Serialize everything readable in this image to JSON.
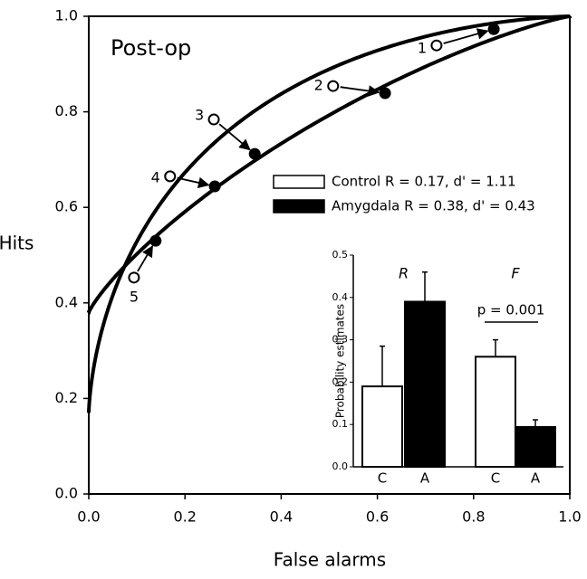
{
  "chart_data": [
    {
      "type": "roc",
      "annotation": "Post-op",
      "xlabel": "False alarms",
      "ylabel": "Hits",
      "xlim": [
        0,
        1
      ],
      "ylim": [
        0,
        1
      ],
      "xticks": [
        {
          "value": 0,
          "label": "0.0"
        },
        0.2,
        0.4,
        0.6,
        0.8,
        {
          "value": 1,
          "label": "1.0"
        }
      ],
      "yticks": [
        {
          "value": 0,
          "label": "0.0"
        },
        0.2,
        0.4,
        0.6,
        0.8,
        {
          "value": 1,
          "label": "1.0"
        }
      ],
      "point_labels": [
        "1",
        "2",
        "3",
        "4",
        "5"
      ],
      "series": [
        {
          "name": "Control R = 0.17, d' = 1.11",
          "color": "#ffffff",
          "R": 0.17,
          "d_prime": 1.11,
          "x": [
            0.723,
            0.508,
            0.26,
            0.169,
            0.094
          ],
          "values": [
            0.939,
            0.854,
            0.784,
            0.665,
            0.453
          ]
        },
        {
          "name": "Amygdala R = 0.38, d' = 0.43",
          "color": "#000000",
          "R": 0.38,
          "d_prime": 0.43,
          "x": [
            0.842,
            0.616,
            0.345,
            0.262,
            0.139
          ],
          "values": [
            0.973,
            0.839,
            0.712,
            0.644,
            0.53
          ]
        }
      ]
    },
    {
      "type": "bar",
      "ylabel": "Probability estimates",
      "ylim": [
        0,
        0.5
      ],
      "yticks": [
        {
          "value": 0,
          "label": "0.0"
        },
        0.1,
        0.2,
        0.3,
        0.4,
        0.5
      ],
      "groups": [
        "R",
        "F"
      ],
      "categories": [
        "C",
        "A",
        "C",
        "A"
      ],
      "colors": [
        "#ffffff",
        "#000000",
        "#ffffff",
        "#000000"
      ],
      "values": [
        0.19,
        0.39,
        0.26,
        0.094
      ],
      "errors": [
        0.095,
        0.07,
        0.04,
        0.017
      ],
      "annotation": "p = 0.001"
    }
  ]
}
